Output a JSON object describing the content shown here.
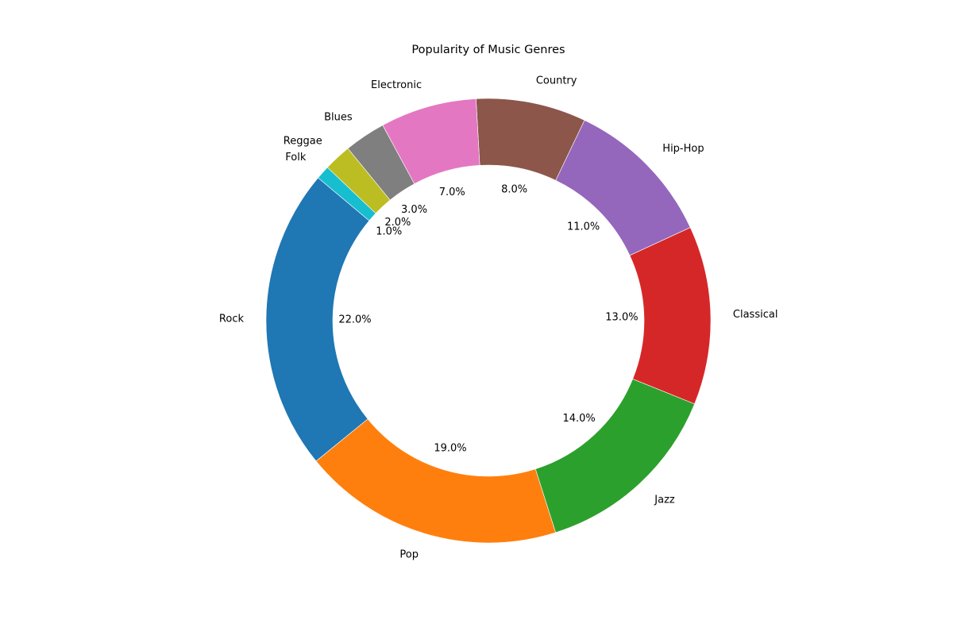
{
  "chart_data": {
    "type": "pie",
    "variant": "donut",
    "title": "Popularity of Music Genres",
    "categories": [
      "Rock",
      "Pop",
      "Jazz",
      "Classical",
      "Hip-Hop",
      "Country",
      "Electronic",
      "Blues",
      "Reggae",
      "Folk"
    ],
    "values": [
      22,
      19,
      14,
      13,
      11,
      8,
      7,
      3,
      2,
      1
    ],
    "percent_labels": [
      "22.0%",
      "19.0%",
      "14.0%",
      "13.0%",
      "11.0%",
      "8.0%",
      "7.0%",
      "3.0%",
      "2.0%",
      "1.0%"
    ],
    "colors": [
      "#1f77b4",
      "#ff7f0e",
      "#2ca02c",
      "#d62728",
      "#9467bd",
      "#8c564b",
      "#e377c2",
      "#7f7f7f",
      "#bcbd22",
      "#17becf"
    ],
    "start_angle_deg": 140,
    "direction": "counterclockwise",
    "legend": "none",
    "grid": false
  }
}
